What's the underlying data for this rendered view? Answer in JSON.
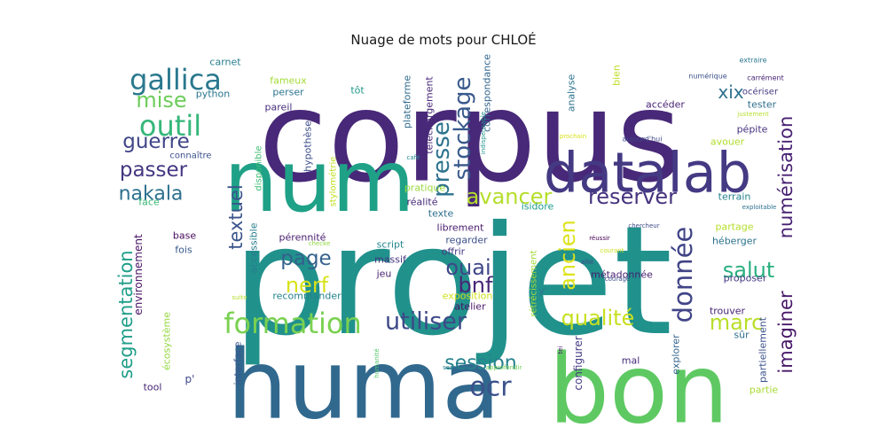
{
  "chart_data": {
    "type": "wordcloud",
    "title": "Nuage de mots pour CHLOÉ",
    "colormap": "viridis",
    "background": "#ffffff",
    "words": [
      {
        "text": "projet",
        "weight": 100,
        "color": "#21918c"
      },
      {
        "text": "corpus",
        "weight": 92,
        "color": "#482878"
      },
      {
        "text": "huma",
        "weight": 70,
        "color": "#31688e"
      },
      {
        "text": "bon",
        "weight": 70,
        "color": "#5ec962"
      },
      {
        "text": "num",
        "weight": 62,
        "color": "#1fa187"
      },
      {
        "text": "datalab",
        "weight": 42,
        "color": "#443983"
      },
      {
        "text": "formation",
        "weight": 22,
        "color": "#7ad151"
      },
      {
        "text": "gallica",
        "weight": 22,
        "color": "#2a788e"
      },
      {
        "text": "outil",
        "weight": 22,
        "color": "#35b779"
      },
      {
        "text": "ocr",
        "weight": 21,
        "color": "#3b528b"
      },
      {
        "text": "donnée",
        "weight": 21,
        "color": "#414487"
      },
      {
        "text": "utiliser",
        "weight": 20,
        "color": "#3e4a89"
      },
      {
        "text": "stockage",
        "weight": 19,
        "color": "#38598c"
      },
      {
        "text": "presse",
        "weight": 19,
        "color": "#2c728e"
      },
      {
        "text": "mise",
        "weight": 19,
        "color": "#6ccd5a"
      },
      {
        "text": "avancer",
        "weight": 18,
        "color": "#b5de2b"
      },
      {
        "text": "bnf",
        "weight": 18,
        "color": "#482677"
      },
      {
        "text": "ancien",
        "weight": 18,
        "color": "#dde318"
      },
      {
        "text": "réserver",
        "weight": 18,
        "color": "#46337e"
      },
      {
        "text": "qualité",
        "weight": 18,
        "color": "#c8e020"
      },
      {
        "text": "nerf",
        "weight": 18,
        "color": "#d8e219"
      },
      {
        "text": "salut",
        "weight": 18,
        "color": "#29af7f"
      },
      {
        "text": "ouai",
        "weight": 18,
        "color": "#3f4788"
      },
      {
        "text": "marc",
        "weight": 18,
        "color": "#b8de29"
      },
      {
        "text": "session",
        "weight": 17,
        "color": "#26828e"
      },
      {
        "text": "guerre",
        "weight": 17,
        "color": "#404688"
      },
      {
        "text": "passer",
        "weight": 17,
        "color": "#453781"
      },
      {
        "text": "page",
        "weight": 17,
        "color": "#34618d"
      },
      {
        "text": "nakala",
        "weight": 16,
        "color": "#2d708e"
      },
      {
        "text": "numérisation",
        "weight": 16,
        "color": "#482173"
      },
      {
        "text": "imaginer",
        "weight": 16,
        "color": "#481769"
      },
      {
        "text": "segmentation",
        "weight": 16,
        "color": "#1f9e89"
      },
      {
        "text": "textuel",
        "weight": 16,
        "color": "#3a548c"
      },
      {
        "text": "xix",
        "weight": 15,
        "color": "#2d718e"
      },
      {
        "text": "environnement",
        "weight": 10,
        "color": "#471063"
      },
      {
        "text": "écosystème",
        "weight": 9,
        "color": "#95d840"
      },
      {
        "text": "tool",
        "weight": 9,
        "color": "#482475"
      },
      {
        "text": "p'",
        "weight": 9,
        "color": "#3e4989"
      },
      {
        "text": "interface",
        "weight": 9,
        "color": "#39568c"
      },
      {
        "text": "humanité",
        "weight": 6,
        "color": "#52c569"
      },
      {
        "text": "semaine",
        "weight": 6,
        "color": "#287c8e"
      },
      {
        "text": "approfondir",
        "weight": 6,
        "color": "#73d056"
      },
      {
        "text": "tei",
        "weight": 6,
        "color": "#48186a"
      },
      {
        "text": "mal",
        "weight": 9,
        "color": "#472d7b"
      },
      {
        "text": "configurer",
        "weight": 9,
        "color": "#443b84"
      },
      {
        "text": "explorer",
        "weight": 9,
        "color": "#33638d"
      },
      {
        "text": "partie",
        "weight": 9,
        "color": "#a8db34"
      },
      {
        "text": "partiellement",
        "weight": 9,
        "color": "#3b518b"
      },
      {
        "text": "sûr",
        "weight": 9,
        "color": "#2e6d8e"
      },
      {
        "text": "trouver",
        "weight": 9,
        "color": "#482576"
      },
      {
        "text": "rétrécissement",
        "weight": 8,
        "color": "#a2da37"
      },
      {
        "text": "atelier",
        "weight": 9,
        "color": "#471365"
      },
      {
        "text": "exposition",
        "weight": 9,
        "color": "#d0e11c"
      },
      {
        "text": "recommander",
        "weight": 9,
        "color": "#25838e"
      },
      {
        "text": "accessible",
        "weight": 9,
        "color": "#287d8e"
      },
      {
        "text": "disponible",
        "weight": 8,
        "color": "#3dbc74"
      },
      {
        "text": "stylométrie",
        "weight": 8,
        "color": "#c2df23"
      },
      {
        "text": "hypothèse",
        "weight": 9,
        "color": "#3d4e8a"
      },
      {
        "text": "plateforme",
        "weight": 9,
        "color": "#2f6b8e"
      },
      {
        "text": "téléchargement",
        "weight": 9,
        "color": "#482979"
      },
      {
        "text": "correspondance",
        "weight": 9,
        "color": "#32648e"
      },
      {
        "text": "indispensable",
        "weight": 7,
        "color": "#20928c"
      },
      {
        "text": "analyse",
        "weight": 9,
        "color": "#2c738e"
      },
      {
        "text": "bien",
        "weight": 9,
        "color": "#bddf26"
      },
      {
        "text": "métadonnée",
        "weight": 9,
        "color": "#482071"
      },
      {
        "text": "carnet",
        "weight": 9,
        "color": "#277f8e"
      },
      {
        "text": "python",
        "weight": 9,
        "color": "#2a768e"
      },
      {
        "text": "connaître",
        "weight": 9,
        "color": "#3c4f8a"
      },
      {
        "text": "face",
        "weight": 9,
        "color": "#3aba76"
      },
      {
        "text": "base",
        "weight": 9,
        "color": "#46085c"
      },
      {
        "text": "fois",
        "weight": 9,
        "color": "#375a8c"
      },
      {
        "text": "fameux",
        "weight": 9,
        "color": "#a5db36"
      },
      {
        "text": "perser",
        "weight": 9,
        "color": "#2b748e"
      },
      {
        "text": "pareil",
        "weight": 9,
        "color": "#472f7d"
      },
      {
        "text": "tôt",
        "weight": 8,
        "color": "#1f998a"
      },
      {
        "text": "café",
        "weight": 6,
        "color": "#23898e"
      },
      {
        "text": "pratique",
        "weight": 10,
        "color": "#9bd93c"
      },
      {
        "text": "réalité",
        "weight": 10,
        "color": "#472a7a"
      },
      {
        "text": "texte",
        "weight": 10,
        "color": "#2e6e8e"
      },
      {
        "text": "librement",
        "weight": 10,
        "color": "#481a6c"
      },
      {
        "text": "regarder",
        "weight": 10,
        "color": "#3c4f8a"
      },
      {
        "text": "offrir",
        "weight": 10,
        "color": "#443a83"
      },
      {
        "text": "isidore",
        "weight": 10,
        "color": "#1e9c89"
      },
      {
        "text": "pérennité",
        "weight": 10,
        "color": "#481c6e"
      },
      {
        "text": "checke",
        "weight": 6,
        "color": "#90d743"
      },
      {
        "text": "script",
        "weight": 10,
        "color": "#23888e"
      },
      {
        "text": "massif",
        "weight": 10,
        "color": "#46327e"
      },
      {
        "text": "jeu",
        "weight": 10,
        "color": "#481f70"
      },
      {
        "text": "accéder",
        "weight": 10,
        "color": "#482475"
      },
      {
        "text": "tester",
        "weight": 10,
        "color": "#2e6f8e"
      },
      {
        "text": "pépite",
        "weight": 10,
        "color": "#46327e"
      },
      {
        "text": "avouer",
        "weight": 10,
        "color": "#b0dd2f"
      },
      {
        "text": "terrain",
        "weight": 10,
        "color": "#26818e"
      },
      {
        "text": "partage",
        "weight": 10,
        "color": "#b5de2b"
      },
      {
        "text": "héberger",
        "weight": 10,
        "color": "#2c728e"
      },
      {
        "text": "proposer",
        "weight": 10,
        "color": "#443983"
      },
      {
        "text": "réussir",
        "weight": 6,
        "color": "#440154"
      },
      {
        "text": "allié",
        "weight": 6,
        "color": "#3e4a89"
      },
      {
        "text": "courant",
        "weight": 6,
        "color": "#cae11f"
      },
      {
        "text": "courage",
        "weight": 6,
        "color": "#3b528b"
      },
      {
        "text": "suite",
        "weight": 6,
        "color": "#b5de2b"
      },
      {
        "text": "y'",
        "weight": 8,
        "color": "#2c728e"
      },
      {
        "text": "extraire",
        "weight": 7,
        "color": "#2a788e"
      },
      {
        "text": "numérique",
        "weight": 7,
        "color": "#3b518b"
      },
      {
        "text": "carrément",
        "weight": 7,
        "color": "#482475"
      },
      {
        "text": "océriser",
        "weight": 9,
        "color": "#443983"
      },
      {
        "text": "justement",
        "weight": 6,
        "color": "#b5de2b"
      },
      {
        "text": "prochain",
        "weight": 6,
        "color": "#d8e219"
      },
      {
        "text": "aujourd'hui",
        "weight": 7,
        "color": "#3e4989"
      },
      {
        "text": "exploitable",
        "weight": 6,
        "color": "#2c728e"
      },
      {
        "text": "chercheur",
        "weight": 6,
        "color": "#3e4a89"
      }
    ]
  }
}
